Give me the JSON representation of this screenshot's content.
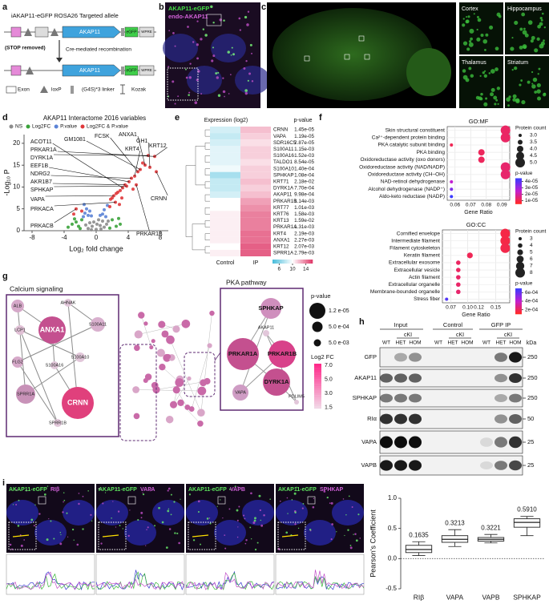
{
  "figure": {
    "a": {
      "letter": "a",
      "title": "iAKAP11-eGFP ROSA26 Targeted allele",
      "stop": "(STOP removed)",
      "cre": "Cre-mediated recombination",
      "gene_top": "AKAP11",
      "gene_bottom": "AKAP11",
      "tag_top": "eGFP",
      "tag_bottom": "eGFP",
      "wpre_top": "WPRE",
      "wpre_bottom": "WPRE",
      "legend": [
        "Exon",
        "loxP",
        "(G4S)*3 linker",
        "Kozak"
      ]
    },
    "b": {
      "letter": "b",
      "green_label": "AKAP11-eGFP",
      "magenta_label": "endo-AKAP11"
    },
    "c": {
      "letter": "c",
      "regions": [
        "Cortex",
        "Hippocampus",
        "Thalamus",
        "Striatum"
      ]
    },
    "d": {
      "letter": "d"
    },
    "e": {
      "letter": "e"
    },
    "f": {
      "letter": "f"
    },
    "g": {
      "letter": "g",
      "modules": [
        "Calcium signaling",
        "PKA pathway"
      ],
      "calcium_nodes": [
        "ALB",
        "AHNAK",
        "LCP1",
        "ANXA1",
        "S100A11",
        "S100A10",
        "S100A16",
        "FLG2",
        "SPRR1A",
        "CRNN",
        "SPRR1B"
      ],
      "pka_nodes": [
        "SPHKAP",
        "AKAP11",
        "PRKAR1A",
        "PRKAR1B",
        "DYRK1A",
        "VAPA",
        "PDLIM5"
      ],
      "size_legend_title": "p-value",
      "size_legend": [
        "1.2 e-05",
        "5.0 e-04",
        "5.0 e-03"
      ],
      "color_legend_title": "Log2 FC",
      "color_legend": [
        "7.0",
        "5.0",
        "3.0",
        "1.5"
      ]
    },
    "h": {
      "letter": "h",
      "groups": [
        "Input",
        "Control",
        "GFP IP"
      ],
      "cki": [
        "cKI",
        "cKI",
        "cKI"
      ],
      "lanes": [
        "WT",
        "HET",
        "HOM",
        "WT",
        "HET",
        "HOM",
        "WT",
        "HET",
        "HOM"
      ],
      "unit": "kDa",
      "rows": [
        {
          "label": "GFP",
          "marker": "250"
        },
        {
          "label": "AKAP11",
          "marker": "250"
        },
        {
          "label": "SPHKAP",
          "marker": "250"
        },
        {
          "label": "RIα",
          "marker": "50"
        },
        {
          "label": "VAPA",
          "marker": "25"
        },
        {
          "label": "VAPB",
          "marker": "25"
        }
      ]
    },
    "i": {
      "letter": "i",
      "images": [
        {
          "green": "AKAP11-eGFP",
          "magenta": "RIβ"
        },
        {
          "green": "AKAP11-eGFP",
          "magenta": "VAPA"
        },
        {
          "green": "AKAP11-eGFP",
          "magenta": "VAPB"
        },
        {
          "green": "AKAP11-eGFP",
          "magenta": "SPHKAP"
        }
      ]
    }
  },
  "chart_data": [
    {
      "type": "scatter",
      "title": "AKAP11 Interactome 2016 variables",
      "x_label": "Log₂ fold change",
      "y_label": "-Log₁₀ P",
      "xlim": [
        -9,
        9
      ],
      "ylim": [
        0,
        22
      ],
      "xticks": [
        -8,
        -4,
        0,
        4,
        8
      ],
      "yticks": [
        0,
        5,
        10,
        15,
        20
      ],
      "annotations": [
        "ACOT11",
        "PRKAR1A",
        "DYRK1A",
        "EEF1B",
        "NDRG2",
        "AKR1B7",
        "SPHKAP",
        "VAPA",
        "PRKACA",
        "PRKACB",
        "GM1081",
        "FCSK",
        "ANXA1",
        "GH1",
        "KRT4",
        "KRT12",
        "CRNN",
        "PRKAR1B"
      ],
      "series": [
        {
          "name": "NS",
          "color": "#8c8c8c",
          "x": [
            -1,
            -0.5,
            0,
            0.5,
            1,
            -0.3,
            0.3,
            0.8,
            -0.8,
            0.1,
            1.3,
            -1.3,
            0.6,
            -0.6,
            1.5
          ],
          "values": [
            0.5,
            1,
            0.3,
            1.2,
            0.8,
            2,
            2.5,
            2.2,
            1.8,
            1.5,
            1.5,
            1.3,
            0.4,
            0.2,
            2.2
          ]
        },
        {
          "name": "Log2FC",
          "color": "#3aa23a",
          "x": [
            -3,
            -2.5,
            -2.2,
            -1.8,
            2.5,
            2,
            3,
            -3.5,
            -2,
            2.8,
            1.7,
            -2.7
          ],
          "values": [
            1.5,
            2,
            1,
            2.5,
            1,
            2.5,
            1.5,
            0.8,
            0.5,
            2.8,
            0.6,
            2.7
          ]
        },
        {
          "name": "P.value",
          "color": "#5b83d6",
          "x": [
            -1.5,
            -1.2,
            -0.8,
            -1,
            1.2,
            1,
            0.8,
            -1.4,
            1.4,
            -0.6,
            0.5,
            -1.6
          ],
          "values": [
            6,
            5,
            4.5,
            3.5,
            3.2,
            4.8,
            3.8,
            4,
            5.8,
            3.4,
            3.5,
            3.2
          ]
        },
        {
          "name": "Log2FC & P.value",
          "color": "#e0373a",
          "x": [
            7.3,
            6.5,
            5.8,
            4.4,
            4.8,
            4.1,
            3.6,
            3.8,
            3.3,
            3,
            2.7,
            2.5,
            2.2,
            2,
            1.8,
            5.2,
            5.5,
            6.1,
            4.6,
            3.2,
            2.4,
            -2.5,
            -1.8,
            -2.8,
            1.7,
            2.9,
            5,
            6.7,
            7.5
          ],
          "values": [
            17,
            17.2,
            15.5,
            12,
            12.5,
            11.2,
            10.5,
            10.2,
            9.8,
            9.2,
            8.8,
            8.5,
            8,
            7.5,
            7.2,
            13.5,
            14,
            15,
            9.5,
            7.5,
            6.5,
            5,
            4.5,
            3.8,
            5.5,
            6,
            10.5,
            14.5,
            13.5
          ]
        }
      ]
    },
    {
      "type": "heatmap",
      "title": "Expression (log2)",
      "annotation_title": "p-value",
      "columns": [
        "Control",
        "IP"
      ],
      "categories": [
        "CRNN",
        "VAPA",
        "SDR16C5",
        "S100A11",
        "S100A16",
        "TALDO1",
        "S100A10",
        "SPHKAP",
        "KRT71",
        "DYRK1A",
        "AKAP11",
        "PRKAR1B",
        "KRT77",
        "KRT76",
        "KRT13",
        "PRKAR1A",
        "KRT4",
        "ANXA1",
        "KRT12",
        "SPRR1A"
      ],
      "p_values": [
        "1.45e-05",
        "1.19e-05",
        "2.87e-05",
        "1.15e-03",
        "1.52e-03",
        "8.54e-05",
        "1.40e-04",
        "1.08e-04",
        "2.18e-02",
        "7.70e-04",
        "9.98e-04",
        "1.14e-03",
        "1.01e-03",
        "1.58e-03",
        "1.59e-02",
        "1.31e-03",
        "2.19e-03",
        "2.27e-03",
        "2.07e-03",
        "2.79e-03"
      ],
      "values": [
        [
          8.5,
          12
        ],
        [
          8,
          11.5
        ],
        [
          8.5,
          11
        ],
        [
          9,
          11.5
        ],
        [
          9,
          11.5
        ],
        [
          9,
          11
        ],
        [
          9.5,
          11.5
        ],
        [
          7,
          11.5
        ],
        [
          8,
          12
        ],
        [
          8,
          11.5
        ],
        [
          8.5,
          12
        ],
        [
          10,
          13
        ],
        [
          10,
          13.5
        ],
        [
          10.5,
          14
        ],
        [
          10.5,
          14
        ],
        [
          10.5,
          14
        ],
        [
          10.5,
          14.5
        ],
        [
          10.5,
          14.5
        ],
        [
          10,
          15
        ],
        [
          10.5,
          15
        ]
      ],
      "zlim": [
        4,
        16
      ],
      "zticks": [
        6,
        10,
        14
      ],
      "colors": [
        "#4fbfdc",
        "#ffffff",
        "#e0406e"
      ]
    },
    {
      "type": "dot",
      "title": "GO:MF",
      "x_label": "Gene Ratio",
      "categories": [
        "Skin structural constituent",
        "Ca²⁺-dependent protein binding",
        "PKA catalytic subunit binding",
        "PKA binding",
        "Oxidoreductase activity (oxo donors)",
        "Oxidoreductase activity (NAD/NADP)",
        "Oxidoreductase activity (CH–OH)",
        "NAD-retinol dehydrogenase",
        "Alcohol dehydrogenase (NADP⁺)",
        "Aldo-keto reductase (NADP)"
      ],
      "values": [
        0.0923,
        0.0923,
        0.0577,
        0.0769,
        0.0769,
        0.0923,
        0.0923,
        0.0577,
        0.0577,
        0.0577
      ],
      "sizes": [
        5,
        5,
        3,
        4,
        4,
        5,
        5,
        3,
        3,
        3
      ],
      "p_values": [
        1.2e-05,
        1.2e-05,
        1e-05,
        1.1e-05,
        1.1e-05,
        1.3e-05,
        1.3e-05,
        2.5e-05,
        3.5e-05,
        4.5e-05
      ],
      "xlim": [
        0.055,
        0.095
      ],
      "xticks": [
        0.06,
        0.07,
        0.08,
        0.09
      ],
      "size_title": "Protein count",
      "size_ticks": [
        {
          "value": 3,
          "label": "3.0"
        },
        3.5,
        {
          "value": 4,
          "label": "4.0"
        },
        4.5,
        {
          "value": 5,
          "label": "5.0"
        }
      ],
      "color_title": "p-value",
      "clim": [
        5e-06,
        4.5e-05
      ],
      "cticks": [
        {
          "value": 4e-05,
          "label": "4e-05"
        },
        {
          "value": 3e-05,
          "label": "3e-05"
        },
        {
          "value": 2e-05,
          "label": "2e-05"
        },
        {
          "value": 1e-05,
          "label": "1e-05"
        }
      ],
      "colors": [
        "#ff2a2a",
        "#c21fd0",
        "#3b3bff"
      ]
    },
    {
      "type": "dot",
      "title": "GO:CC",
      "x_label": "Gene Ratio",
      "categories": [
        "Cornified envelope",
        "Intermediate filament",
        "Filament cytoskeleton",
        "Keratin filament",
        "Extracellular exosome",
        "Extracellular vesicle",
        "Actin filament",
        "Extracellular organelle",
        "Membrane-bounded organelle",
        "Stress fiber"
      ],
      "values": [
        0.167,
        0.167,
        0.167,
        0.104,
        0.0833,
        0.0833,
        0.0833,
        0.0833,
        0.0833,
        0.0625
      ],
      "sizes": [
        8,
        8,
        8,
        5,
        4,
        4,
        4,
        4,
        4,
        3
      ],
      "p_values": [
        0.00015,
        0.00015,
        0.00016,
        0.00018,
        0.0002,
        0.0002,
        0.00021,
        0.00021,
        0.00022,
        0.00065
      ],
      "xlim": [
        0.055,
        0.175
      ],
      "xticks": [
        0.07,
        {
          "value": 0.1,
          "label": "0.10"
        },
        0.12,
        0.15
      ],
      "size_title": "Protein count",
      "size_ticks": [
        3,
        4,
        5,
        6,
        7,
        8
      ],
      "color_title": "p-value",
      "clim": [
        0.0001,
        0.0007
      ],
      "cticks": [
        {
          "value": 0.0006,
          "label": "6e-04"
        },
        {
          "value": 0.0004,
          "label": "4e-04"
        },
        {
          "value": 0.0002,
          "label": "2e-04"
        }
      ],
      "colors": [
        "#ff2a2a",
        "#c21fd0",
        "#3b3bff"
      ]
    },
    {
      "type": "box",
      "y_label": "Pearson's Coefficient",
      "categories": [
        "RIβ",
        "VAPA",
        "VAPB",
        "SPHKAP"
      ],
      "values": [
        0.1635,
        0.3213,
        0.3221,
        0.591
      ],
      "value_labels": [
        "0.1635",
        "0.3213",
        "0.3221",
        "0.5910"
      ],
      "boxes": [
        [
          0.05,
          0.1,
          0.15,
          0.22,
          0.28
        ],
        [
          0.2,
          0.27,
          0.32,
          0.38,
          0.48
        ],
        [
          0.26,
          0.29,
          0.32,
          0.35,
          0.4
        ],
        [
          0.38,
          0.52,
          0.6,
          0.66,
          0.7
        ]
      ],
      "ylim": [
        -0.5,
        1.0
      ],
      "yticks": [
        -0.5,
        {
          "value": 0,
          "label": "0.0"
        },
        {
          "value": 0.5,
          "label": "0.5"
        },
        {
          "value": 1,
          "label": "1.0"
        }
      ]
    }
  ]
}
